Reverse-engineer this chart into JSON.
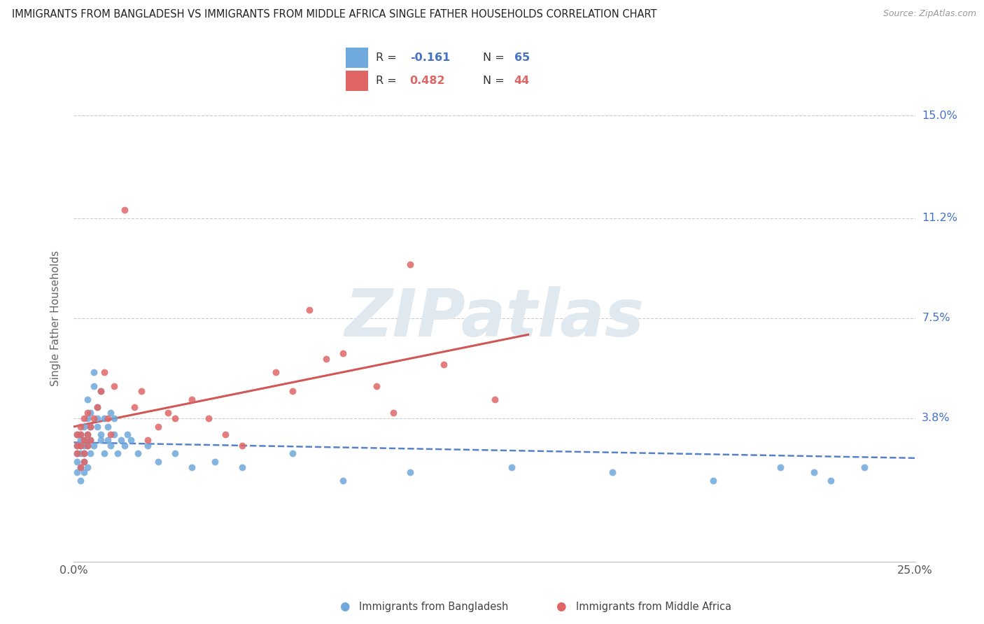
{
  "title": "IMMIGRANTS FROM BANGLADESH VS IMMIGRANTS FROM MIDDLE AFRICA SINGLE FATHER HOUSEHOLDS CORRELATION CHART",
  "source": "Source: ZipAtlas.com",
  "ylabel": "Single Father Households",
  "ytick_values": [
    0.038,
    0.075,
    0.112,
    0.15
  ],
  "ytick_labels": [
    "3.8%",
    "7.5%",
    "11.2%",
    "15.0%"
  ],
  "xlim": [
    0.0,
    0.25
  ],
  "ylim": [
    -0.015,
    0.165
  ],
  "bangladesh_color": "#6fa8dc",
  "middleafrica_color": "#e06666",
  "trendline_bangladesh_color": "#4472c4",
  "trendline_middleafrica_color": "#cc4444",
  "legend_label_bangladesh": "Immigrants from Bangladesh",
  "legend_label_middleafrica": "Immigrants from Middle Africa",
  "bangladesh_R": -0.161,
  "bangladesh_N": 65,
  "middleafrica_R": 0.482,
  "middleafrica_N": 44,
  "bangladesh_x": [
    0.001,
    0.001,
    0.001,
    0.001,
    0.001,
    0.002,
    0.002,
    0.002,
    0.002,
    0.002,
    0.002,
    0.003,
    0.003,
    0.003,
    0.003,
    0.003,
    0.003,
    0.004,
    0.004,
    0.004,
    0.004,
    0.004,
    0.005,
    0.005,
    0.005,
    0.005,
    0.006,
    0.006,
    0.006,
    0.007,
    0.007,
    0.007,
    0.008,
    0.008,
    0.008,
    0.009,
    0.009,
    0.01,
    0.01,
    0.011,
    0.011,
    0.012,
    0.012,
    0.013,
    0.014,
    0.015,
    0.016,
    0.017,
    0.019,
    0.022,
    0.025,
    0.03,
    0.035,
    0.042,
    0.05,
    0.065,
    0.08,
    0.1,
    0.13,
    0.16,
    0.19,
    0.21,
    0.22,
    0.225,
    0.235
  ],
  "bangladesh_y": [
    0.028,
    0.032,
    0.022,
    0.018,
    0.025,
    0.02,
    0.028,
    0.032,
    0.025,
    0.03,
    0.015,
    0.022,
    0.028,
    0.035,
    0.03,
    0.018,
    0.025,
    0.028,
    0.038,
    0.032,
    0.045,
    0.02,
    0.025,
    0.035,
    0.03,
    0.04,
    0.028,
    0.05,
    0.055,
    0.035,
    0.042,
    0.038,
    0.032,
    0.048,
    0.03,
    0.038,
    0.025,
    0.035,
    0.03,
    0.04,
    0.028,
    0.032,
    0.038,
    0.025,
    0.03,
    0.028,
    0.032,
    0.03,
    0.025,
    0.028,
    0.022,
    0.025,
    0.02,
    0.022,
    0.02,
    0.025,
    0.015,
    0.018,
    0.02,
    0.018,
    0.015,
    0.02,
    0.018,
    0.015,
    0.02
  ],
  "middleafrica_x": [
    0.001,
    0.001,
    0.001,
    0.002,
    0.002,
    0.002,
    0.002,
    0.003,
    0.003,
    0.003,
    0.003,
    0.004,
    0.004,
    0.004,
    0.005,
    0.005,
    0.006,
    0.007,
    0.008,
    0.009,
    0.01,
    0.011,
    0.012,
    0.015,
    0.018,
    0.02,
    0.022,
    0.025,
    0.028,
    0.03,
    0.035,
    0.04,
    0.045,
    0.05,
    0.06,
    0.065,
    0.07,
    0.075,
    0.08,
    0.09,
    0.095,
    0.1,
    0.11,
    0.125
  ],
  "middleafrica_y": [
    0.028,
    0.025,
    0.032,
    0.02,
    0.028,
    0.035,
    0.032,
    0.022,
    0.03,
    0.038,
    0.025,
    0.032,
    0.04,
    0.028,
    0.035,
    0.03,
    0.038,
    0.042,
    0.048,
    0.055,
    0.038,
    0.032,
    0.05,
    0.115,
    0.042,
    0.048,
    0.03,
    0.035,
    0.04,
    0.038,
    0.045,
    0.038,
    0.032,
    0.028,
    0.055,
    0.048,
    0.078,
    0.06,
    0.062,
    0.05,
    0.04,
    0.095,
    0.058,
    0.045
  ]
}
